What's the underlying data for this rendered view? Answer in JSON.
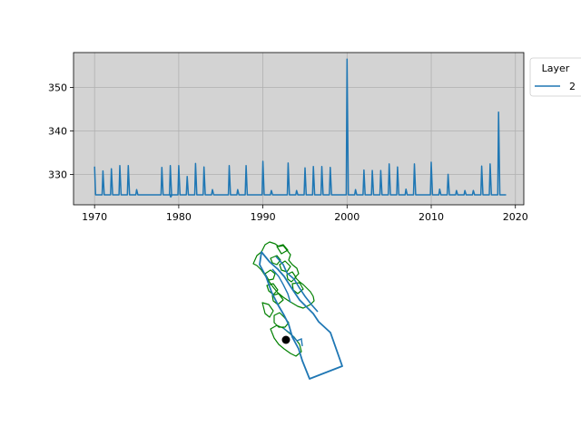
{
  "chart_data": [
    {
      "type": "line",
      "xlabel": "",
      "ylabel": "",
      "xlim": [
        1967.5,
        2021.0
      ],
      "ylim": [
        323.0,
        358.0
      ],
      "xticks": [
        1970,
        1980,
        1990,
        2000,
        2010,
        2020
      ],
      "yticks": [
        330,
        340,
        350
      ],
      "xtick_labels": [
        "1970",
        "1980",
        "1990",
        "2000",
        "2010",
        "2020"
      ],
      "ytick_labels": [
        "330",
        "340",
        "350"
      ],
      "grid": true,
      "background": "#d3d3d3",
      "legend": {
        "title": "Layer",
        "placement": "outside-top-right",
        "entries": [
          "2"
        ]
      },
      "baseline": 325.3,
      "series": [
        {
          "name": "2",
          "color": "#1f77b4",
          "x_range": [
            1970.0,
            2018.9
          ],
          "peaks": [
            [
              1970.0,
              331.8
            ],
            [
              1971.0,
              330.8
            ],
            [
              1972.0,
              331.3
            ],
            [
              1973.0,
              332.0
            ],
            [
              1974.0,
              332.0
            ],
            [
              1975.0,
              326.5
            ],
            [
              1978.0,
              331.6
            ],
            [
              1979.0,
              332.0
            ],
            [
              1980.0,
              332.0
            ],
            [
              1981.0,
              329.5
            ],
            [
              1982.0,
              332.5
            ],
            [
              1983.0,
              331.7
            ],
            [
              1984.0,
              326.5
            ],
            [
              1986.0,
              332.0
            ],
            [
              1987.0,
              326.5
            ],
            [
              1988.0,
              332.0
            ],
            [
              1990.0,
              333.0
            ],
            [
              1991.0,
              326.3
            ],
            [
              1993.0,
              332.6
            ],
            [
              1994.0,
              326.3
            ],
            [
              1995.0,
              331.5
            ],
            [
              1996.0,
              331.8
            ],
            [
              1997.0,
              331.8
            ],
            [
              1998.0,
              331.6
            ],
            [
              2000.0,
              356.5
            ],
            [
              2001.0,
              326.5
            ],
            [
              2002.0,
              331.0
            ],
            [
              2003.0,
              330.9
            ],
            [
              2004.0,
              330.9
            ],
            [
              2005.0,
              332.4
            ],
            [
              2006.0,
              331.7
            ],
            [
              2007.0,
              326.6
            ],
            [
              2008.0,
              332.4
            ],
            [
              2010.0,
              332.8
            ],
            [
              2011.0,
              326.6
            ],
            [
              2012.0,
              330.0
            ],
            [
              2013.0,
              326.3
            ],
            [
              2014.0,
              326.3
            ],
            [
              2015.0,
              326.3
            ],
            [
              2016.0,
              331.9
            ],
            [
              2017.0,
              332.4
            ],
            [
              2018.0,
              344.3
            ]
          ],
          "dips": [
            [
              1979.0,
              324.8
            ]
          ]
        }
      ]
    },
    {
      "type": "map",
      "point": {
        "color": "#000000"
      },
      "outline_color": "#1f77b4",
      "subbasin_color": "#008000"
    }
  ]
}
